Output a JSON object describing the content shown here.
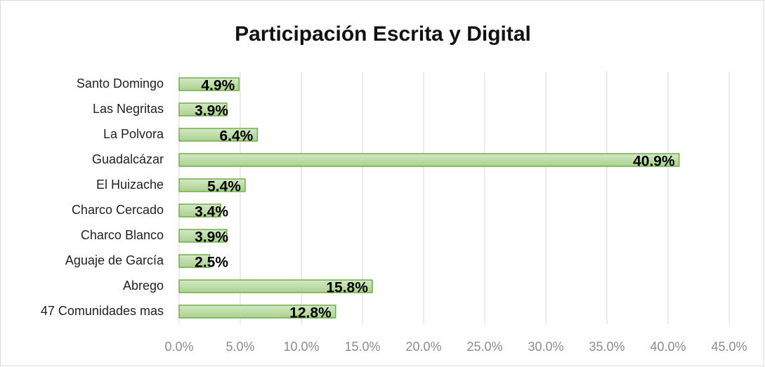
{
  "chart_data": {
    "type": "bar",
    "orientation": "horizontal",
    "title": "Participación Escrita y Digital",
    "categories": [
      "Santo Domingo",
      "Las Negritas ",
      "La Polvora",
      "Guadalcázar",
      "El Huizache",
      "Charco Cercado",
      "Charco Blanco",
      "Aguaje de García",
      "Abrego",
      "47 Comunidades mas"
    ],
    "values": [
      4.9,
      3.9,
      6.4,
      40.9,
      5.4,
      3.4,
      3.9,
      2.5,
      15.8,
      12.8
    ],
    "value_labels": [
      "4.9%",
      "3.9%",
      "6.4%",
      "40.9%",
      "5.4%",
      "3.4%",
      "3.9%",
      "2.5%",
      "15.8%",
      "12.8%"
    ],
    "color": "#a9d18e",
    "xlim": [
      0,
      45
    ],
    "xticks": [
      {
        "value": 0,
        "label": "0.0%"
      },
      {
        "value": 5,
        "label": "5.0%"
      },
      {
        "value": 10,
        "label": "10.0%"
      },
      {
        "value": 15,
        "label": "15.0%"
      },
      {
        "value": 20,
        "label": "20.0%"
      },
      {
        "value": 25,
        "label": "25.0%"
      },
      {
        "value": 30,
        "label": "30.0%"
      },
      {
        "value": 35,
        "label": "35.0%"
      },
      {
        "value": 40,
        "label": "40.0%"
      },
      {
        "value": 45,
        "label": "45.0%"
      }
    ],
    "grid": true
  }
}
